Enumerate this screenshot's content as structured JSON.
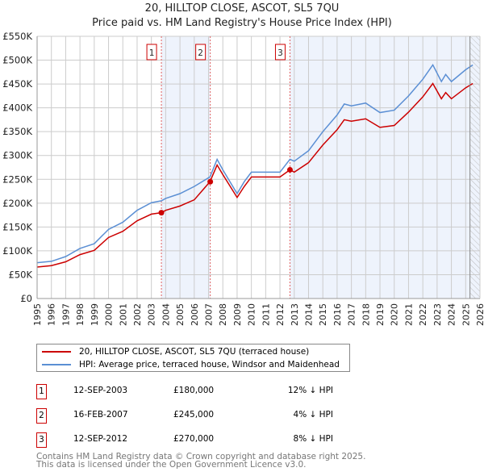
{
  "chart_data": {
    "type": "line",
    "title": "20, HILLTOP CLOSE, ASCOT, SL5 7QU",
    "subtitle": "Price paid vs. HM Land Registry's House Price Index (HPI)",
    "xlim": [
      1995,
      2026
    ],
    "ylim": [
      0,
      550000
    ],
    "x_ticks": [
      "1995",
      "1996",
      "1997",
      "1998",
      "1999",
      "2000",
      "2001",
      "2002",
      "2003",
      "2004",
      "2005",
      "2006",
      "2007",
      "2008",
      "2009",
      "2010",
      "2011",
      "2012",
      "2013",
      "2014",
      "2015",
      "2016",
      "2017",
      "2018",
      "2019",
      "2020",
      "2021",
      "2022",
      "2023",
      "2024",
      "2025",
      "2026"
    ],
    "y_ticks": [
      "£0",
      "£50K",
      "£100K",
      "£150K",
      "£200K",
      "£250K",
      "£300K",
      "£350K",
      "£400K",
      "£450K",
      "£500K",
      "£550K"
    ],
    "grid": true,
    "series": [
      {
        "name": "20, HILLTOP CLOSE, ASCOT, SL5 7QU (terraced house)",
        "color": "#cc0000",
        "x": [
          1995,
          1996,
          1997,
          1998,
          1999,
          2000,
          2001,
          2002,
          2003,
          2003.7,
          2004,
          2005,
          2006,
          2007.1,
          2007.6,
          2008,
          2009,
          2009.5,
          2010,
          2011,
          2012,
          2012.7,
          2013,
          2014,
          2015,
          2016,
          2016.5,
          2017,
          2018,
          2019,
          2020,
          2021,
          2022,
          2022.7,
          2023.3,
          2023.6,
          2024,
          2025,
          2025.5
        ],
        "y": [
          66000,
          69000,
          77000,
          92000,
          101000,
          128000,
          141000,
          163000,
          177000,
          180000,
          185000,
          194000,
          207000,
          245000,
          280000,
          260000,
          212000,
          235000,
          255000,
          255000,
          255000,
          270000,
          265000,
          285000,
          322000,
          354000,
          375000,
          372000,
          377000,
          359000,
          363000,
          391000,
          423000,
          451000,
          419000,
          432000,
          419000,
          442000,
          451000
        ]
      },
      {
        "name": "HPI: Average price, terraced house, Windsor and Maidenhead",
        "color": "#5b8fd4",
        "x": [
          1995,
          1996,
          1997,
          1998,
          1999,
          2000,
          2001,
          2002,
          2003,
          2003.7,
          2004,
          2005,
          2006,
          2007.1,
          2007.6,
          2008,
          2009,
          2009.5,
          2010,
          2011,
          2012,
          2012.7,
          2013,
          2014,
          2015,
          2016,
          2016.5,
          2017,
          2018,
          2019,
          2020,
          2021,
          2022,
          2022.7,
          2023.3,
          2023.6,
          2024,
          2025,
          2025.5
        ],
        "y": [
          75000,
          78000,
          88000,
          105000,
          115000,
          145000,
          160000,
          185000,
          201000,
          205000,
          210000,
          220000,
          235000,
          255000,
          292000,
          270000,
          220000,
          245000,
          265000,
          265000,
          265000,
          292000,
          288000,
          310000,
          350000,
          385000,
          408000,
          404000,
          410000,
          390000,
          395000,
          425000,
          460000,
          490000,
          455000,
          470000,
          455000,
          480000,
          490000
        ]
      }
    ],
    "annotations": [
      {
        "label": "1",
        "x": 2003.7,
        "date": "12-SEP-2003",
        "price": "£180,000",
        "hpi": "12% ↓ HPI",
        "value": 180000
      },
      {
        "label": "2",
        "x": 2007.12,
        "date": "16-FEB-2007",
        "price": "£245,000",
        "hpi": "4% ↓ HPI",
        "value": 245000
      },
      {
        "label": "3",
        "x": 2012.7,
        "date": "12-SEP-2012",
        "price": "£270,000",
        "hpi": "8% ↓ HPI",
        "value": 270000
      }
    ],
    "shaded": [
      [
        2003.7,
        2007.12
      ],
      [
        2012.7,
        2026
      ]
    ],
    "forecast_hatch_from": 2025.3
  },
  "footer": {
    "line1": "Contains HM Land Registry data © Crown copyright and database right 2025.",
    "line2": "This data is licensed under the Open Government Licence v3.0."
  }
}
